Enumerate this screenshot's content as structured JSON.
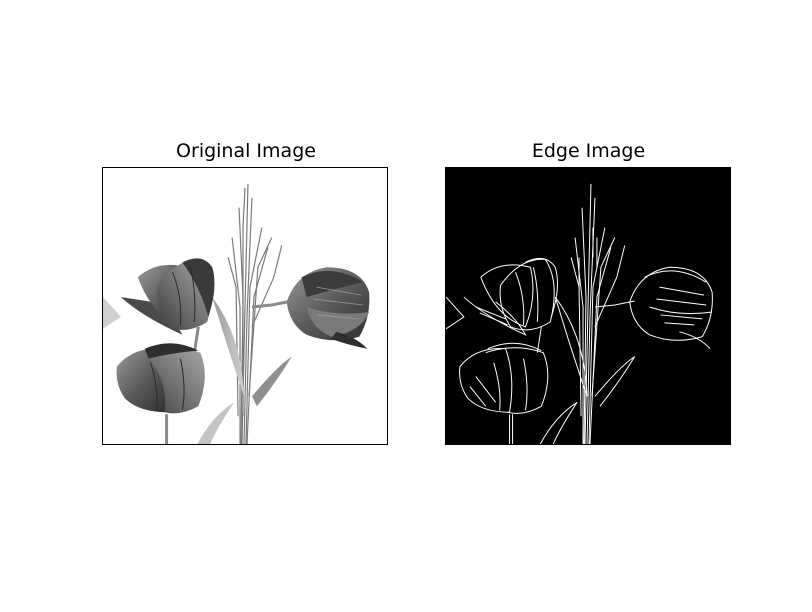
{
  "figure": {
    "panels": [
      {
        "title": "Original Image",
        "image": "grayscale-tulips-photo"
      },
      {
        "title": "Edge Image",
        "image": "edge-detected-tulips"
      }
    ],
    "colors": {
      "background": "#ffffff",
      "frame": "#000000",
      "edge_background": "#000000",
      "edge_lines": "#ffffff"
    }
  }
}
